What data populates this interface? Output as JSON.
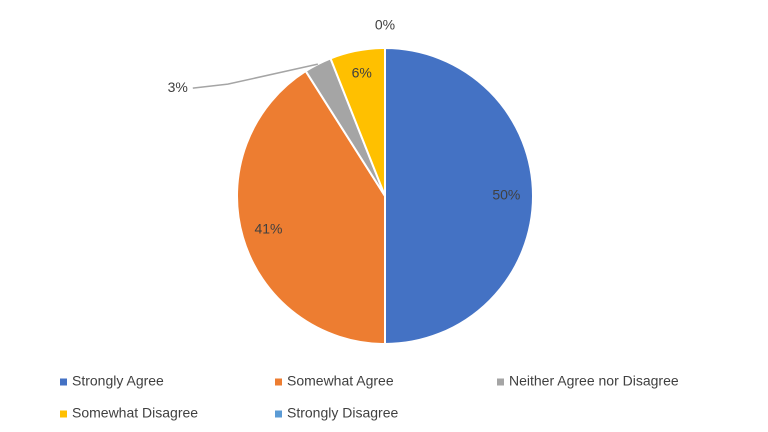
{
  "chart_data": {
    "type": "pie",
    "categories": [
      "Strongly Agree",
      "Somewhat Agree",
      "Neither Agree nor Disagree",
      "Somewhat Disagree",
      "Strongly Disagree"
    ],
    "values": [
      50,
      41,
      3,
      6,
      0
    ],
    "value_labels": [
      "50%",
      "41%",
      "3%",
      "6%",
      "0%"
    ],
    "colors": [
      "#4472c4",
      "#ed7d31",
      "#a5a5a5",
      "#ffc000",
      "#5b9bd5"
    ],
    "legend": "bottom"
  }
}
